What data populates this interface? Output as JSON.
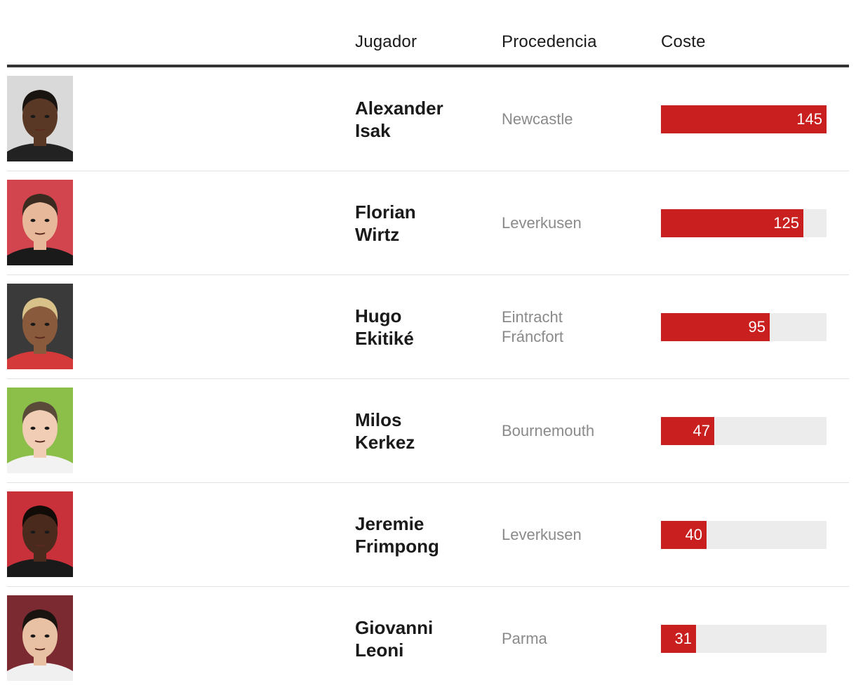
{
  "header": {
    "player": "Jugador",
    "origin": "Procedencia",
    "cost": "Coste"
  },
  "chart_data": {
    "type": "bar",
    "orientation": "horizontal",
    "xlim": [
      0,
      145
    ],
    "bar_color": "#c91f1f",
    "track_color": "#ececec",
    "rows": [
      {
        "first": "Alexander",
        "last": "Isak",
        "origin": [
          "Newcastle"
        ],
        "value": 145,
        "label": "145",
        "photo_bg": "#d9d9d9",
        "skin": "#5a3826",
        "hair": "#1a1410",
        "shirt": "#222222"
      },
      {
        "first": "Florian",
        "last": "Wirtz",
        "origin": [
          "Leverkusen"
        ],
        "value": 125,
        "label": "125",
        "photo_bg": "#d2454f",
        "skin": "#e8b89a",
        "hair": "#3b2a20",
        "shirt": "#1a1a1a"
      },
      {
        "first": "Hugo",
        "last": "Ekitiké",
        "origin": [
          "Eintracht",
          "Fráncfort"
        ],
        "value": 95,
        "label": "95",
        "photo_bg": "#3a3a3a",
        "skin": "#8a5a3c",
        "hair": "#d8c28a",
        "shirt": "#d43a3a"
      },
      {
        "first": "Milos",
        "last": "Kerkez",
        "origin": [
          "Bournemouth"
        ],
        "value": 47,
        "label": "47",
        "photo_bg": "#8cbf4a",
        "skin": "#f0cdb4",
        "hair": "#5a4a3a",
        "shirt": "#f2f2f2"
      },
      {
        "first": "Jeremie",
        "last": "Frimpong",
        "origin": [
          "Leverkusen"
        ],
        "value": 40,
        "label": "40",
        "photo_bg": "#c8303a",
        "skin": "#4a2a1c",
        "hair": "#120c08",
        "shirt": "#1a1a1a"
      },
      {
        "first": "Giovanni",
        "last": "Leoni",
        "origin": [
          "Parma"
        ],
        "value": 31,
        "label": "31",
        "photo_bg": "#7a2a30",
        "skin": "#e8c0a4",
        "hair": "#1a1410",
        "shirt": "#f0f0f0"
      }
    ]
  }
}
